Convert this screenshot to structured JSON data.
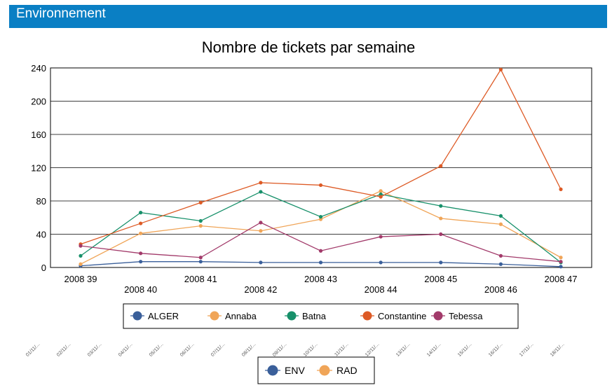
{
  "header": {
    "title": "Environnement"
  },
  "chart_data": {
    "type": "line",
    "title": "Nombre de tickets par semaine",
    "xlabel": "",
    "ylabel": "",
    "ylim": [
      0,
      240
    ],
    "yticks": [
      0,
      40,
      80,
      120,
      160,
      200,
      240
    ],
    "grid": true,
    "categories": [
      "2008 39",
      "2008 40",
      "2008 41",
      "2008 42",
      "2008 43",
      "2008 44",
      "2008 45",
      "2008 46",
      "2008 47"
    ],
    "series": [
      {
        "name": "ALGER",
        "color": "#3a5f9a",
        "values": [
          2,
          7,
          7,
          6,
          6,
          6,
          6,
          4,
          1
        ]
      },
      {
        "name": "Annaba",
        "color": "#f0a558",
        "values": [
          4,
          41,
          50,
          44,
          58,
          92,
          59,
          52,
          12
        ]
      },
      {
        "name": "Batna",
        "color": "#17906a",
        "values": [
          14,
          66,
          56,
          91,
          61,
          88,
          74,
          62,
          6
        ]
      },
      {
        "name": "Constantine",
        "color": "#dd5a25",
        "values": [
          28,
          53,
          78,
          102,
          99,
          85,
          122,
          238,
          94
        ]
      },
      {
        "name": "Tebessa",
        "color": "#a23a6a",
        "values": [
          26,
          17,
          12,
          54,
          20,
          37,
          40,
          14,
          7
        ]
      }
    ],
    "legend": {
      "placement": "bottom"
    },
    "secondary_axis_labels": [
      "01/11/...",
      "02/11/...",
      "03/11/...",
      "04/11/...",
      "05/11/...",
      "06/11/...",
      "07/11/...",
      "08/11/...",
      "09/11/...",
      "10/11/...",
      "11/11/...",
      "12/11/...",
      "13/11/...",
      "14/11/...",
      "15/11/...",
      "16/11/...",
      "17/11/...",
      "18/11/..."
    ],
    "secondary_legend": [
      {
        "name": "ENV",
        "color": "#3a5f9a"
      },
      {
        "name": "RAD",
        "color": "#f0a558"
      }
    ]
  }
}
